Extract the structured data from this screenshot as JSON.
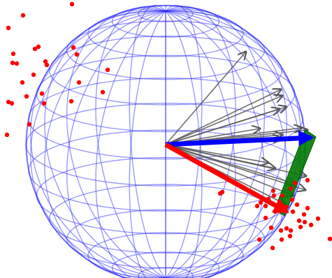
{
  "figure": {
    "kind": "3d-vector-diagram",
    "colors": {
      "background": "#ffffff",
      "sphere_wireframe": "#2020ff",
      "gray_vectors": "#555555",
      "red_points": "#ff0000",
      "mean_vector_blue": "#0000ff",
      "mean_vector_red": "#ff0000",
      "plane_patch_green": "#007a00"
    },
    "counts": {
      "gray_vectors": 17,
      "red_points": 61
    }
  }
}
